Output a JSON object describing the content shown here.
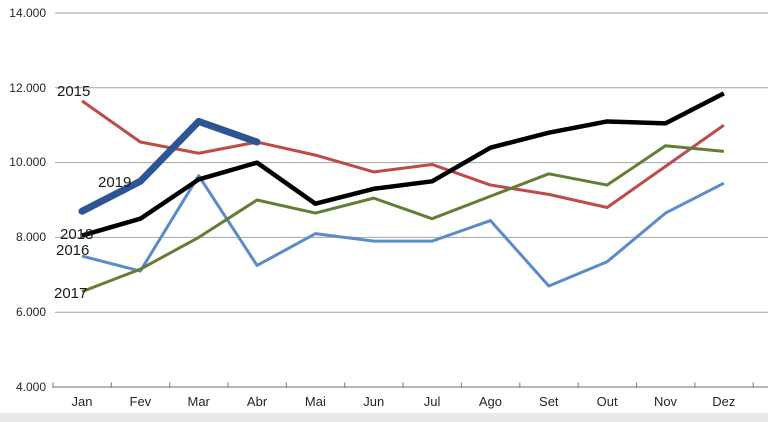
{
  "chart_data": {
    "type": "line",
    "title": "",
    "xlabel": "",
    "ylabel": "",
    "categories": [
      "Jan",
      "Fev",
      "Mar",
      "Abr",
      "Mai",
      "Jun",
      "Jul",
      "Ago",
      "Set",
      "Out",
      "Nov",
      "Dez"
    ],
    "y_ticks": [
      "14.000",
      "12.000",
      "10.000",
      "8.000",
      "6.000",
      "4.000"
    ],
    "ylim": [
      4000,
      14000
    ],
    "grid": "horizontal-only",
    "legend": "inline-labels-near-lines",
    "colors": {
      "gridline": "#a6a6a6",
      "axis": "#8c8c8c",
      "tick_text": "#262626"
    },
    "series": [
      {
        "name": "2015",
        "color": "#be4b48",
        "width": 3,
        "values": [
          11650,
          10550,
          10250,
          10550,
          10200,
          9750,
          9950,
          9400,
          9150,
          8800,
          9900,
          11000
        ]
      },
      {
        "name": "2016",
        "color": "#5b8bc9",
        "width": 3,
        "values": [
          7500,
          7100,
          9650,
          7250,
          8100,
          7900,
          7900,
          8450,
          6700,
          7350,
          8650,
          9450
        ]
      },
      {
        "name": "2017",
        "color": "#647d35",
        "width": 3,
        "values": [
          6550,
          7150,
          8000,
          9000,
          8650,
          9050,
          8500,
          9100,
          9700,
          9400,
          10450,
          10300
        ]
      },
      {
        "name": "2018",
        "color": "#000000",
        "width": 4.5,
        "values": [
          8050,
          8500,
          9550,
          10000,
          8900,
          9300,
          9500,
          10400,
          10800,
          11100,
          11050,
          11850
        ]
      },
      {
        "name": "2019",
        "color": "#2d5493",
        "width": 7,
        "cap": "round",
        "values": [
          8700,
          9500,
          11100,
          10550,
          null,
          null,
          null,
          null,
          null,
          null,
          null,
          null
        ]
      }
    ]
  }
}
